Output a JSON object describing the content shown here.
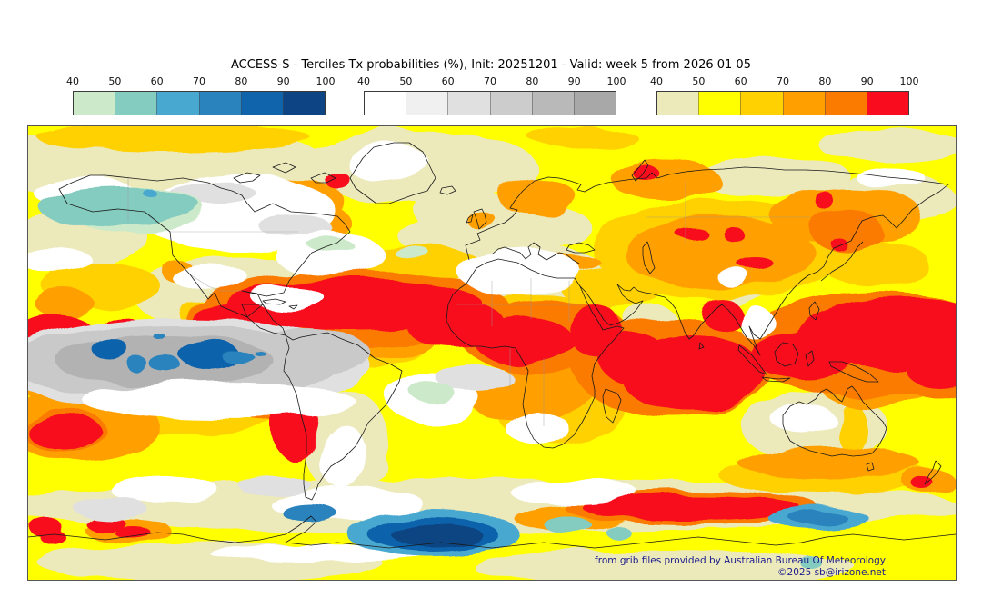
{
  "title": "ACCESS-S - Terciles Tx probabilities (%), Init: 20251201 - Valid: week 5 from 2026 01 05",
  "colorbars": [
    {
      "name": "below-normal",
      "ticks": [
        "40",
        "50",
        "60",
        "70",
        "80",
        "90",
        "100"
      ],
      "colors": [
        "#cce9c9",
        "#85ccc0",
        "#49a8d0",
        "#2a83bd",
        "#1064ab",
        "#0d4483"
      ]
    },
    {
      "name": "near-normal",
      "ticks": [
        "40",
        "50",
        "60",
        "70",
        "80",
        "90",
        "100"
      ],
      "colors": [
        "#ffffff",
        "#f0f0f0",
        "#e0e0e0",
        "#cccccc",
        "#b9b9b9",
        "#a8a8a8"
      ]
    },
    {
      "name": "above-normal",
      "ticks": [
        "40",
        "50",
        "60",
        "70",
        "80",
        "90",
        "100"
      ],
      "colors": [
        "#ece9bb",
        "#ffff00",
        "#ffd100",
        "#ffa000",
        "#fb7a00",
        "#f80c1e"
      ]
    }
  ],
  "map": {
    "attribution_line1": "from grib files provided by Australian Bureau Of Meteorology",
    "attribution_line2": "©2025 sb@irizone.net",
    "attribution_color": "#1a1a8c",
    "coastline_color": "#1a1a1a",
    "border_color": "#555555"
  },
  "palette": {
    "base": "#ffff00",
    "khaki": "#ece9bb",
    "gold": "#ffd100",
    "orange": "#ffa000",
    "darkorange": "#fb7a00",
    "red": "#f80c1e",
    "white": "#ffffff",
    "gray1": "#f0f0f0",
    "gray2": "#e0e0e0",
    "gray3": "#c9c9c9",
    "gray4": "#b2b2b2",
    "green1": "#cce9c9",
    "teal": "#85ccc0",
    "blue1": "#49a8d0",
    "blue2": "#2a83bd",
    "blue3": "#1064ab",
    "navy": "#0d4483"
  }
}
